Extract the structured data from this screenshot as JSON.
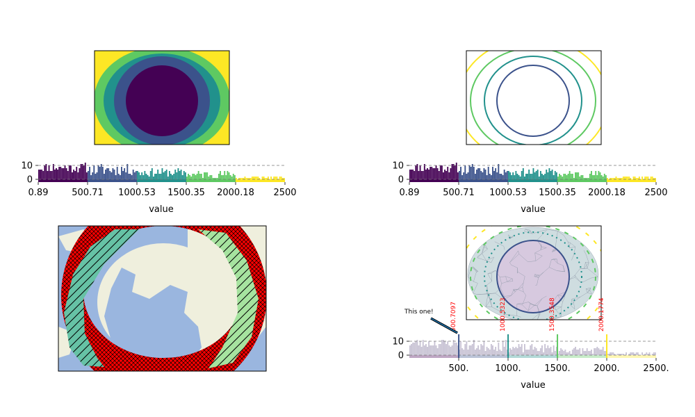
{
  "chart_data": [
    {
      "type": "heatmap",
      "variant": "filled-contour",
      "levels": [
        0.89,
        500.71,
        1000.53,
        1500.35,
        2000.18,
        2500
      ],
      "colors": [
        "#440154",
        "#3b528b",
        "#21918c",
        "#5ec962",
        "#fde725"
      ]
    },
    {
      "type": "bar",
      "variant": "histogram",
      "xlabel": "value",
      "xticks": [
        "0.89",
        "500.71",
        "1000.53",
        "1500.35",
        "2000.18",
        "2500"
      ],
      "yticks": [
        "0",
        "10"
      ],
      "xlim": [
        0.89,
        2500
      ],
      "ylim": [
        -2,
        14
      ],
      "reference_line": 10,
      "colors": [
        "#440154",
        "#3b528b",
        "#21918c",
        "#5ec962",
        "#fde725"
      ]
    },
    {
      "type": "heatmap",
      "variant": "line-contour",
      "levels": [
        0.89,
        500.71,
        1000.53,
        1500.35,
        2000.18,
        2500
      ],
      "colors": [
        "#3b528b",
        "#21918c",
        "#5ec962",
        "#fde725"
      ]
    },
    {
      "type": "bar",
      "variant": "histogram",
      "xlabel": "value",
      "xticks": [
        "0.89",
        "500.71",
        "1000.53",
        "1500.35",
        "2000.18",
        "2500"
      ],
      "yticks": [
        "0",
        "10"
      ],
      "xlim": [
        0.89,
        2500
      ],
      "ylim": [
        -2,
        14
      ],
      "reference_line": 10,
      "colors": [
        "#440154",
        "#3b528b",
        "#21918c",
        "#5ec962",
        "#fde725"
      ]
    },
    {
      "type": "heatmap",
      "variant": "hatched-contour-map",
      "colors": {
        "ocean": "#9ab6df",
        "land": "#efefdd",
        "hatch_red": "#ff0000",
        "hatch_teal": "#66c2a5",
        "hatch_green": "#a6e39f"
      }
    },
    {
      "type": "heatmap",
      "variant": "tricontour-with-mesh",
      "colors": [
        "#3b528b",
        "#21918c",
        "#5ec962",
        "#fde725"
      ]
    },
    {
      "type": "bar",
      "variant": "histogram",
      "xlabel": "value",
      "xticks": [
        "500.",
        "1000.",
        "1500.",
        "2000.",
        "2500."
      ],
      "tick_values": [
        500,
        1000,
        1500,
        2000,
        2500
      ],
      "yticks": [
        "0",
        "10"
      ],
      "xlim": [
        0,
        2500
      ],
      "ylim": [
        -2,
        14
      ],
      "reference_line": 10,
      "highlight_lines": [
        {
          "x": 500.7097,
          "label": "500.7097",
          "color": "#3b528b"
        },
        {
          "x": 1000.5323,
          "label": "1000.5323",
          "color": "#21918c"
        },
        {
          "x": 1500.3548,
          "label": "1500.3548",
          "color": "#5ec962"
        },
        {
          "x": 2000.1774,
          "label": "2000.1774",
          "color": "#fde725"
        }
      ],
      "annotation": "This one!",
      "colors": [
        "#440154",
        "#3b528b",
        "#21918c",
        "#5ec962",
        "#fde725"
      ]
    }
  ]
}
